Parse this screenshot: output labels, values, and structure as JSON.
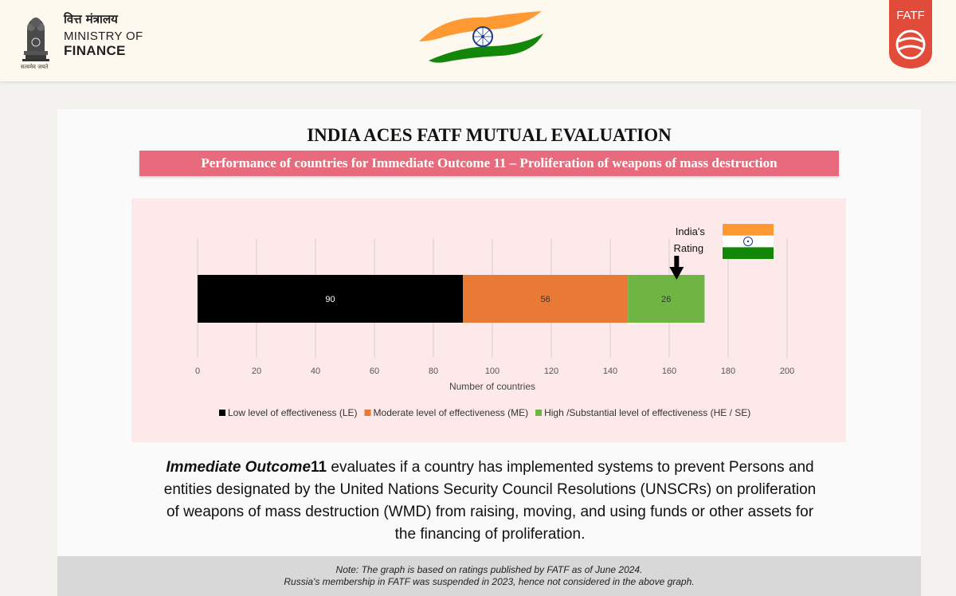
{
  "header": {
    "ministry_hindi": "वित्त मंत्रालय",
    "ministry_line1": "MINISTRY OF",
    "ministry_line2": "FINANCE",
    "motto": "सत्यमेव जयते",
    "fatf_logo_text": "FATF"
  },
  "main_title": "INDIA ACES FATF MUTUAL EVALUATION",
  "subtitle": "Performance of countries for Immediate Outcome 11 – Proliferation of weapons of mass destruction",
  "chart_data": {
    "type": "bar",
    "orientation": "horizontal",
    "stacked": true,
    "series": [
      {
        "name": "Low level of effectiveness (LE)",
        "values": [
          90
        ],
        "color": "#000000"
      },
      {
        "name": "Moderate level of effectiveness (ME)",
        "values": [
          56
        ],
        "color": "#e87a35"
      },
      {
        "name": "High /Substantial level of effectiveness (HE / SE)",
        "values": [
          26
        ],
        "color": "#6fb544"
      }
    ],
    "xlabel": "Number of countries",
    "xlim": [
      0,
      200
    ],
    "xticks": [
      "0",
      "20",
      "40",
      "60",
      "80",
      "100",
      "120",
      "140",
      "160",
      "180",
      "200"
    ],
    "grid": "vertical",
    "legend_position": "bottom",
    "annotation": {
      "line1": "India's",
      "line2": "Rating"
    }
  },
  "description": {
    "lead": "Immediate Outcome",
    "number": "11",
    "line1_rest": "evaluates if a country has implemented systems to prevent Persons and",
    "line2": "entities designated by the United Nations Security Council Resolutions (UNSCRs) on proliferation",
    "line3": "of weapons of mass destruction (WMD) from raising, moving, and using funds or other assets for",
    "line4": "the financing of proliferation."
  },
  "note": {
    "line1": "Note: The graph is based on ratings published by FATF as of June 2024.",
    "line2": "Russia's membership in FATF was suspended in 2023, hence not considered in the above graph."
  },
  "colors": {
    "header_bg": "#fdf9ef",
    "subtitle_bg": "#e86b7d",
    "chart_bg": "#fde9e9",
    "saffron": "#ff9933",
    "green": "#138808",
    "fatf_red": "#e04b3a"
  }
}
